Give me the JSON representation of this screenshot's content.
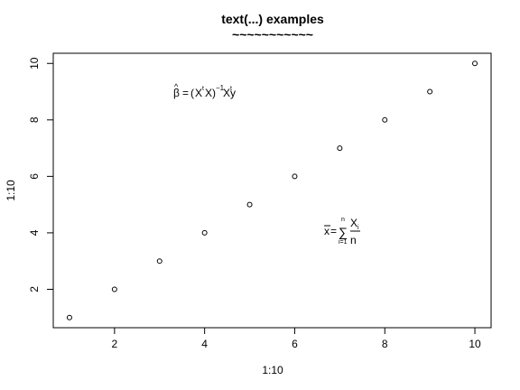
{
  "chart_data": {
    "type": "scatter",
    "title": "text(...) examples",
    "subtitle": "~~~~~~~~~~~",
    "xlabel": "1:10",
    "ylabel": "1:10",
    "xlim": [
      0.64,
      10.36
    ],
    "ylim": [
      0.64,
      10.36
    ],
    "x_ticks": [
      2,
      4,
      6,
      8,
      10
    ],
    "y_ticks": [
      2,
      4,
      6,
      8,
      10
    ],
    "grid": false,
    "x": [
      1,
      2,
      3,
      4,
      5,
      6,
      7,
      8,
      9,
      10
    ],
    "y": [
      1,
      2,
      3,
      4,
      5,
      6,
      7,
      8,
      9,
      10
    ],
    "annotations": [
      {
        "kind": "beta_hat",
        "x": 4,
        "y": 9,
        "parts": {
          "beta": "β",
          "hat": "^",
          "eq": "=",
          "lparen": "(",
          "X1": "X",
          "t1": "t",
          "X2": "X",
          "rparen": ")",
          "inv": "−1",
          "X3": "X",
          "t2": "t",
          "y": "y"
        }
      },
      {
        "kind": "xbar",
        "x": 7,
        "y": 4,
        "parts": {
          "x": "x",
          "eq": "=",
          "sigma": "∑",
          "upper": "n",
          "lower": "i=1",
          "num": "X",
          "sub": "i",
          "den": "n"
        }
      }
    ]
  }
}
